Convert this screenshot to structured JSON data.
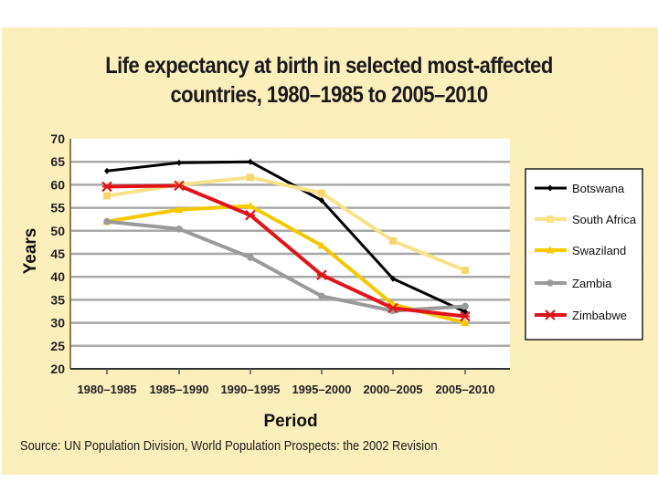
{
  "chart_data": {
    "type": "line",
    "title": "Life expectancy at birth in selected most-affected countries, 1980–1985 to 2005–2010",
    "title_lines": [
      "Life expectancy at birth in selected most-affected",
      "countries, 1980–1985 to 2005–2010"
    ],
    "xlabel": "Period",
    "ylabel": "Years",
    "categories": [
      "1980–1985",
      "1985–1990",
      "1990–1995",
      "1995–2000",
      "2000–2005",
      "2005–2010"
    ],
    "ylim": [
      20,
      70
    ],
    "yticks": [
      20,
      25,
      30,
      35,
      40,
      45,
      50,
      55,
      60,
      65,
      70
    ],
    "grid": true,
    "legend_position": "right",
    "series": [
      {
        "name": "Botswana",
        "color": "#000000",
        "marker": "diamond",
        "values": [
          63,
          64.8,
          65,
          56.6,
          39.6,
          32.4
        ]
      },
      {
        "name": "South Africa",
        "color": "#f7e38a",
        "marker": "square",
        "values": [
          57.6,
          60,
          61.6,
          58.2,
          47.8,
          41.4
        ]
      },
      {
        "name": "Swaziland",
        "color": "#f5c800",
        "marker": "triangle",
        "values": [
          52,
          54.6,
          55.4,
          46.8,
          34,
          30
        ]
      },
      {
        "name": "Zambia",
        "color": "#9a9a9a",
        "marker": "circle",
        "values": [
          52,
          50.4,
          44.2,
          35.8,
          32.6,
          33.6
        ]
      },
      {
        "name": "Zimbabwe",
        "color": "#e0151b",
        "marker": "asterisk",
        "values": [
          59.6,
          59.8,
          53.4,
          40.4,
          33.2,
          31.4
        ]
      }
    ]
  },
  "source": "Source: UN Population Division, World Population Prospects: the 2002 Revision",
  "colors": {
    "panel_background": "#fcefb9",
    "plot_background": "#ffffff",
    "gridline": "#a8a8a8"
  }
}
